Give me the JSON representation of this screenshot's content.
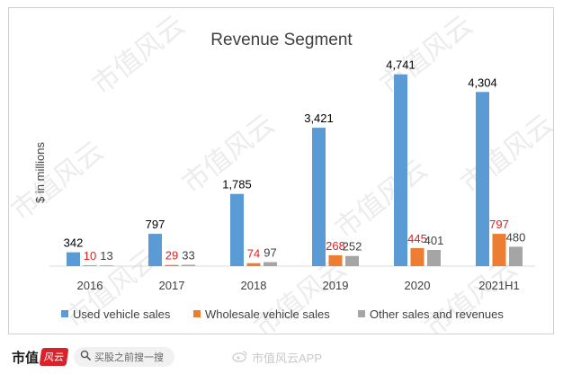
{
  "chart_data": {
    "type": "bar",
    "title": "Revenue Segment",
    "ylabel": "$ in millions",
    "xlabel": "",
    "categories": [
      "2016",
      "2017",
      "2018",
      "2019",
      "2020",
      "2021H1"
    ],
    "series": [
      {
        "name": "Used vehicle sales",
        "values": [
          342,
          797,
          1785,
          3421,
          4741,
          4304
        ],
        "color": "#5B9BD5"
      },
      {
        "name": "Wholesale vehicle sales",
        "values": [
          10,
          29,
          74,
          268,
          445,
          797
        ],
        "color": "#ED7D31"
      },
      {
        "name": "Other sales and revenues",
        "values": [
          13,
          33,
          97,
          252,
          401,
          480
        ],
        "color": "#A5A5A5"
      }
    ],
    "data_labels": [
      [
        "342",
        "797",
        "1,785",
        "3,421",
        "4,741",
        "4,304"
      ],
      [
        "10",
        "29",
        "74",
        "268",
        "445",
        "797"
      ],
      [
        "13",
        "33",
        "97",
        "252",
        "401",
        "480"
      ]
    ],
    "label_colors": [
      "#000000",
      "#E02020",
      "#404040"
    ],
    "ylim": [
      0,
      5000
    ],
    "grid": false,
    "legend": "bottom",
    "axis_color": "#d9d9d9"
  },
  "watermark": {
    "text": "市值风云",
    "color": "#ececec"
  },
  "footer": {
    "brand": "市值",
    "brand_seal": "风云",
    "search_placeholder": "买股之前搜一搜",
    "app_name": "市值风云APP",
    "icons": {
      "search": "search-icon",
      "weibo": "weibo-icon"
    }
  }
}
